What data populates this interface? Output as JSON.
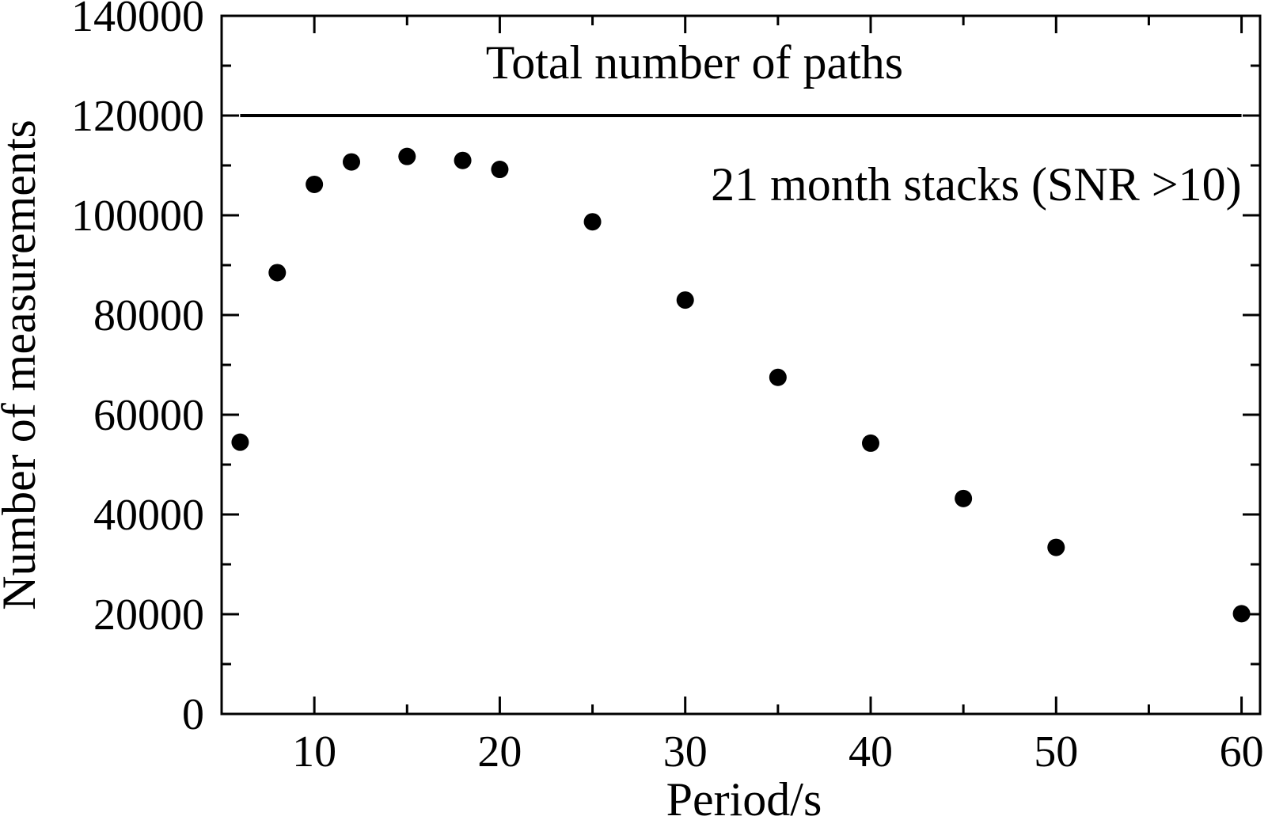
{
  "chart_data": {
    "type": "scatter",
    "xlabel": "Period/s",
    "ylabel": "Number of measurements",
    "xlim": [
      5,
      61
    ],
    "ylim": [
      0,
      140000
    ],
    "x_ticks": [
      10,
      20,
      30,
      40,
      50,
      60
    ],
    "x_tick_labels": [
      "10",
      "20",
      "30",
      "40",
      "50",
      "60"
    ],
    "x_minor_step": 5,
    "y_ticks": [
      0,
      20000,
      40000,
      60000,
      80000,
      100000,
      120000,
      140000
    ],
    "y_tick_labels": [
      "0",
      "20000",
      "40000",
      "60000",
      "80000",
      "100000",
      "120000",
      "140000"
    ],
    "y_minor_step": 10000,
    "grid": false,
    "series": [
      {
        "x": [
          6,
          8,
          10,
          12,
          15,
          18,
          20,
          25,
          30,
          35,
          40,
          45,
          50,
          60
        ],
        "y": [
          54500,
          88500,
          106200,
          110700,
          111800,
          111000,
          109200,
          98700,
          83000,
          67500,
          54300,
          43200,
          33400,
          20100
        ],
        "color": "#000000"
      }
    ],
    "reference_lines": [
      {
        "x_from": 6,
        "x_to": 60,
        "y": 120000,
        "label": "Total number of paths"
      }
    ],
    "annotations": [
      {
        "text": "Total number of paths",
        "x": 30.5,
        "y": 127500,
        "anchor": "middle"
      },
      {
        "text": "21 month stacks (SNR >10)",
        "x": 60,
        "y": 103000,
        "anchor": "end"
      }
    ]
  }
}
